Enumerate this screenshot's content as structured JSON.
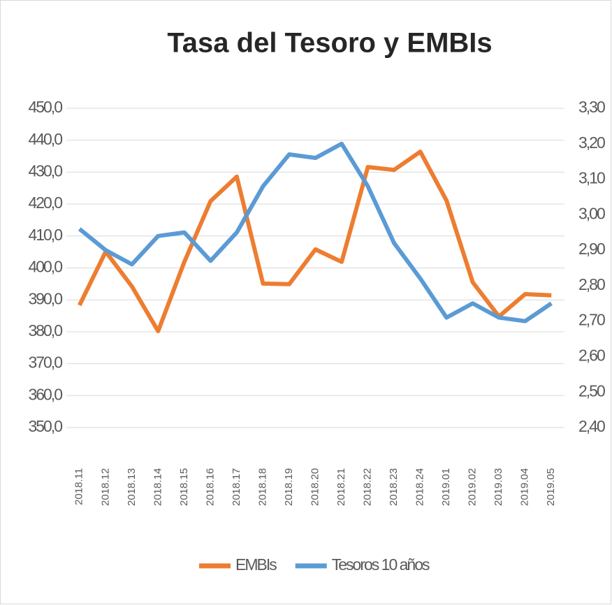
{
  "chart_data": {
    "type": "line",
    "title": "Tasa del Tesoro y EMBIs",
    "categories": [
      "2018.11",
      "2018.12",
      "2018.13",
      "2018.14",
      "2018.15",
      "2018.16",
      "2018.17",
      "2018.18",
      "2018.19",
      "2018.20",
      "2018.21",
      "2018.22",
      "2018.23",
      "2018.24",
      "2019.01",
      "2019.02",
      "2019.03",
      "2019.04",
      "2019.05"
    ],
    "series": [
      {
        "name": "EMBIs",
        "color": "#ed7d31",
        "values": [
          388.3,
          405.1,
          394.2,
          380.2,
          401.9,
          420.9,
          428.6,
          395.1,
          394.9,
          405.8,
          401.9,
          431.6,
          430.7,
          436.4,
          421.1,
          395.5,
          384.8,
          391.8,
          391.4
        ]
      },
      {
        "name": "Tesoros 10 años",
        "color": "#5b9bd5",
        "axis": "y2",
        "values": [
          2.96,
          2.9,
          2.86,
          2.94,
          2.95,
          2.87,
          2.95,
          3.08,
          3.17,
          3.16,
          3.2,
          3.08,
          2.92,
          2.82,
          2.71,
          2.75,
          2.71,
          2.7,
          2.75
        ]
      }
    ],
    "ylim": [
      350,
      450
    ],
    "yticks": [
      {
        "value": 350,
        "label": "350,0"
      },
      {
        "value": 360,
        "label": "360,0"
      },
      {
        "value": 370,
        "label": "370,0"
      },
      {
        "value": 380,
        "label": "380,0"
      },
      {
        "value": 390,
        "label": "390,0"
      },
      {
        "value": 400,
        "label": "400,0"
      },
      {
        "value": 410,
        "label": "410,0"
      },
      {
        "value": 420,
        "label": "420,0"
      },
      {
        "value": 430,
        "label": "430,0"
      },
      {
        "value": 440,
        "label": "440,0"
      },
      {
        "value": 450,
        "label": "450,0"
      }
    ],
    "y2lim": [
      2.4,
      3.3
    ],
    "y2ticks": [
      {
        "value": 2.4,
        "label": "2,40"
      },
      {
        "value": 2.5,
        "label": "2,50"
      },
      {
        "value": 2.6,
        "label": "2,60"
      },
      {
        "value": 2.7,
        "label": "2,70"
      },
      {
        "value": 2.8,
        "label": "2,80"
      },
      {
        "value": 2.9,
        "label": "2,90"
      },
      {
        "value": 3.0,
        "label": "3,00"
      },
      {
        "value": 3.1,
        "label": "3,10"
      },
      {
        "value": 3.2,
        "label": "3,20"
      },
      {
        "value": 3.3,
        "label": "3,30"
      }
    ],
    "grid": true,
    "legend": "bottom"
  }
}
